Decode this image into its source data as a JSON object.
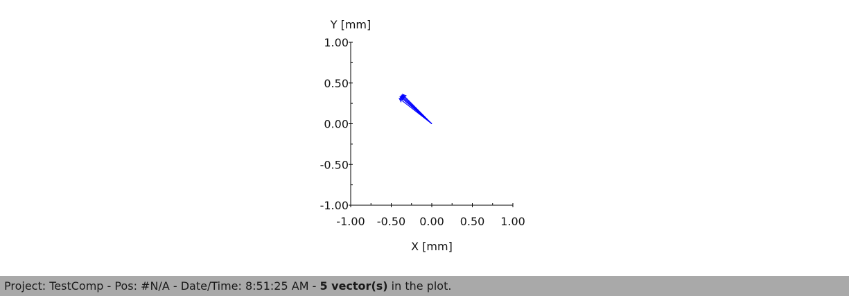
{
  "chart_data": {
    "type": "vector",
    "title": "",
    "xlabel": "X [mm]",
    "ylabel": "Y [mm]",
    "xlim": [
      -1.0,
      1.0
    ],
    "ylim": [
      -1.0,
      1.0
    ],
    "xticks": [
      "-1.00",
      "-0.50",
      "0.00",
      "0.50",
      "1.00"
    ],
    "yticks": [
      "1.00",
      "0.50",
      "0.00",
      "-0.50",
      "-1.00"
    ],
    "grid": false,
    "vector_color": "#0000ff",
    "vectors": [
      {
        "x0": 0,
        "y0": 0,
        "x1": -0.37,
        "y1": 0.35
      },
      {
        "x0": 0,
        "y0": 0,
        "x1": -0.39,
        "y1": 0.33
      },
      {
        "x0": 0,
        "y0": 0,
        "x1": -0.36,
        "y1": 0.36
      },
      {
        "x0": 0,
        "y0": 0,
        "x1": -0.4,
        "y1": 0.31
      },
      {
        "x0": 0,
        "y0": 0,
        "x1": -0.38,
        "y1": 0.34
      }
    ]
  },
  "status": {
    "prefix": "Project: TestComp - Pos: #N/A - Date/Time: 8:51:25 AM - ",
    "bold": "5 vector(s)",
    "suffix": " in the plot."
  }
}
